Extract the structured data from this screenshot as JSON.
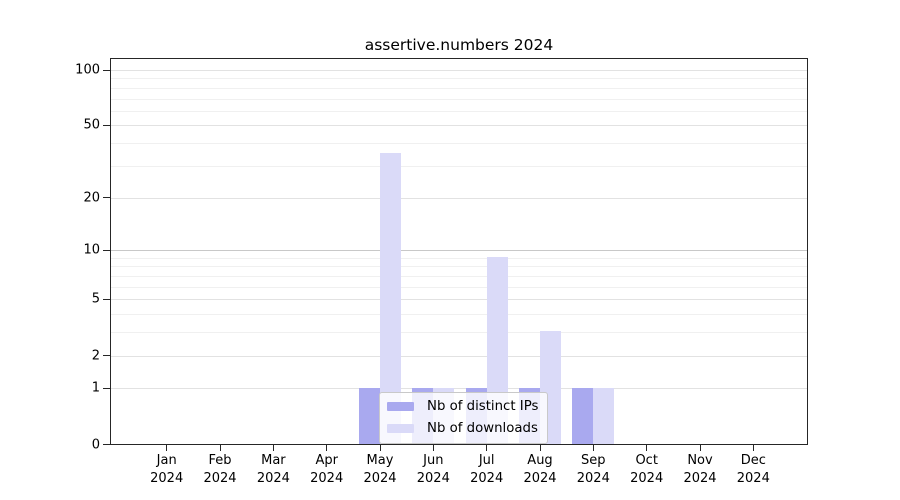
{
  "chart_data": {
    "type": "bar",
    "title": "assertive.numbers 2024",
    "x_tick_labels": [
      [
        "Jan",
        "2024"
      ],
      [
        "Feb",
        "2024"
      ],
      [
        "Mar",
        "2024"
      ],
      [
        "Apr",
        "2024"
      ],
      [
        "May",
        "2024"
      ],
      [
        "Jun",
        "2024"
      ],
      [
        "Jul",
        "2024"
      ],
      [
        "Aug",
        "2024"
      ],
      [
        "Sep",
        "2024"
      ],
      [
        "Oct",
        "2024"
      ],
      [
        "Nov",
        "2024"
      ],
      [
        "Dec",
        "2024"
      ]
    ],
    "y_tick_labels": [
      "100",
      "50",
      "20",
      "10",
      "5",
      "2",
      "1",
      "0"
    ],
    "y_scale": "log1p",
    "ylim": [
      0,
      116
    ],
    "y_gridlines": [
      1,
      2,
      3,
      4,
      5,
      6,
      7,
      8,
      9,
      10,
      20,
      30,
      40,
      50,
      60,
      70,
      80,
      90,
      100
    ],
    "grid": true,
    "legend_position": "lower-center-inside",
    "series": [
      {
        "name": "Nb of distinct IPs",
        "color": "#a9a9ef",
        "values": [
          0,
          0,
          0,
          0,
          1,
          1,
          1,
          1,
          1,
          0,
          0,
          0
        ]
      },
      {
        "name": "Nb of downloads",
        "color": "#dadaf8",
        "values": [
          0,
          0,
          0,
          0,
          35,
          1,
          9,
          3,
          1,
          0,
          0,
          0
        ]
      }
    ]
  }
}
